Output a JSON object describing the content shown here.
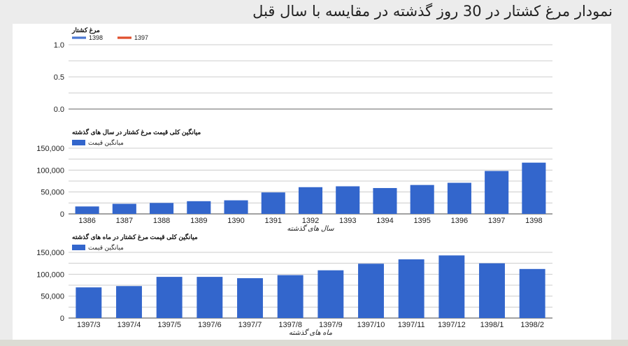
{
  "page": {
    "title": "نمودار مرغ کشتار در 30 روز گذشته در مقایسه با سال قبل"
  },
  "colors": {
    "bar": "#3366cc",
    "series_1398": "#3366cc",
    "series_1397": "#dc3912",
    "grid": "#cccccc",
    "background": "#ececec"
  },
  "chart_data": [
    {
      "type": "line",
      "title": "مرغ کشتار",
      "xlabel": "",
      "ylabel": "",
      "ylim": [
        0,
        1
      ],
      "yticks": [
        "1.0",
        "0.5",
        "0.0"
      ],
      "legend": "top-left",
      "grid": true,
      "series": [
        {
          "name": "1398",
          "values": []
        },
        {
          "name": "1397",
          "values": []
        }
      ]
    },
    {
      "type": "bar",
      "title": "میانگین کلی قیمت مرغ کشتار در سال های گذشته",
      "legend_label": "میانگین قیمت",
      "legend": "top-left",
      "grid": true,
      "xlabel": "سال های گذشته",
      "ylabel": "",
      "ylim": [
        0,
        150000
      ],
      "yticks": [
        "150,000",
        "100,000",
        "50,000",
        "0"
      ],
      "categories": [
        "1386",
        "1387",
        "1388",
        "1389",
        "1390",
        "1391",
        "1392",
        "1393",
        "1394",
        "1395",
        "1396",
        "1397",
        "1398"
      ],
      "values": [
        17000,
        23000,
        25000,
        29000,
        31000,
        49000,
        61000,
        63000,
        59000,
        66000,
        71000,
        98000,
        117000
      ]
    },
    {
      "type": "bar",
      "title": "میانگین کلی قیمت مرغ کشتار در ماه های گذشته",
      "legend_label": "میانگین قیمت",
      "legend": "top-left",
      "grid": true,
      "xlabel": "ماه های گذشته",
      "ylabel": "",
      "ylim": [
        0,
        150000
      ],
      "yticks": [
        "150,000",
        "100,000",
        "50,000",
        "0"
      ],
      "categories": [
        "1397/3",
        "1397/4",
        "1397/5",
        "1397/6",
        "1397/7",
        "1397/8",
        "1397/9",
        "1397/10",
        "1397/11",
        "1397/12",
        "1398/1",
        "1398/2"
      ],
      "values": [
        70000,
        73000,
        94000,
        94000,
        91000,
        98000,
        109000,
        124000,
        134000,
        143000,
        125000,
        112000
      ]
    }
  ]
}
